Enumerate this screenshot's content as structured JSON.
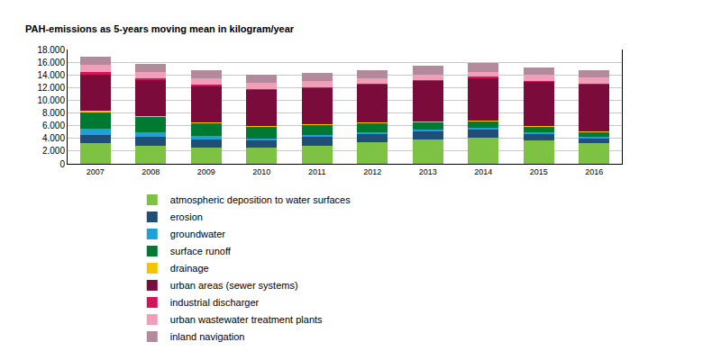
{
  "chart_data": {
    "type": "bar",
    "stacked": true,
    "grid": true,
    "legend": "bottom",
    "y_label": "PAH-emissions as 5-years moving mean in kilogram/year",
    "categories": [
      "2007",
      "2008",
      "2009",
      "2010",
      "2011",
      "2012",
      "2013",
      "2014",
      "2015",
      "2016"
    ],
    "ylim": [
      0,
      18000
    ],
    "yticks": [
      0,
      {
        "value": 2000,
        "label": "2.000"
      },
      {
        "value": 4000,
        "label": "4.000"
      },
      {
        "value": 6000,
        "label": "6.000"
      },
      {
        "value": 8000,
        "label": "8.000"
      },
      {
        "value": 10000,
        "label": "10.000"
      },
      {
        "value": 12000,
        "label": "12.000"
      },
      {
        "value": 14000,
        "label": "14.000"
      },
      {
        "value": 16000,
        "label": "16.000"
      },
      {
        "value": 18000,
        "label": "18.000"
      }
    ],
    "series": [
      {
        "name": "atmospheric deposition to water surfaces",
        "color": "#7dc242",
        "values": [
          3300,
          2900,
          2500,
          2500,
          2900,
          3400,
          3800,
          4100,
          3700,
          3200
        ]
      },
      {
        "name": "erosion",
        "color": "#1f4e79",
        "values": [
          1300,
          1300,
          1300,
          1200,
          1300,
          1300,
          1300,
          1400,
          1000,
          800
        ]
      },
      {
        "name": "groundwater",
        "color": "#1fa0d8",
        "values": [
          900,
          800,
          600,
          300,
          400,
          300,
          300,
          100,
          200,
          200
        ]
      },
      {
        "name": "surface runoff",
        "color": "#007a33",
        "values": [
          2700,
          2400,
          2000,
          1900,
          1600,
          1400,
          1200,
          1200,
          1000,
          900
        ]
      },
      {
        "name": "drainage",
        "color": "#f5c400",
        "values": [
          100,
          50,
          100,
          50,
          50,
          50,
          100,
          50,
          50,
          50
        ]
      },
      {
        "name": "urban areas (sewer systems)",
        "color": "#7b0b3a",
        "values": [
          5700,
          5850,
          5800,
          5750,
          5750,
          6050,
          6400,
          6750,
          6950,
          7350
        ]
      },
      {
        "name": "industrial discharger",
        "color": "#d4145a",
        "values": [
          400,
          100,
          150,
          100,
          100,
          100,
          100,
          100,
          100,
          100
        ]
      },
      {
        "name": "urban wastewater treatment plants",
        "color": "#f19fb8",
        "values": [
          1200,
          1100,
          950,
          1000,
          900,
          800,
          900,
          800,
          1000,
          1000
        ]
      },
      {
        "name": "inland navigation",
        "color": "#b38a9c",
        "values": [
          1300,
          1300,
          1300,
          1200,
          1300,
          1400,
          1300,
          1400,
          1200,
          1200
        ]
      }
    ]
  }
}
